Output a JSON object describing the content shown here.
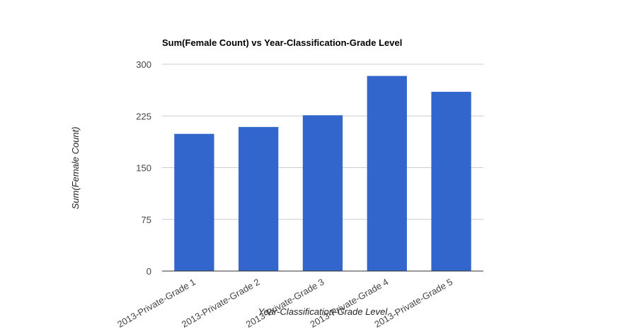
{
  "chart_data": {
    "type": "bar",
    "title": "Sum(Female Count) vs Year-Classification-Grade Level",
    "xlabel": "Year-Classification-Grade Level",
    "ylabel": "Sum(Female Count)",
    "categories": [
      "2013-Private-Grade 1",
      "2013-Private-Grade 2",
      "2013-Private-Grade 3",
      "2013-Private-Grade 4",
      "2013-Private-Grade 5"
    ],
    "values": [
      199,
      209,
      226,
      283,
      260
    ],
    "ylim": [
      0,
      300
    ],
    "yticks": [
      "0",
      "75",
      "150",
      "225",
      "300"
    ],
    "color": "#3366cc",
    "grid": true,
    "legend": "none"
  }
}
